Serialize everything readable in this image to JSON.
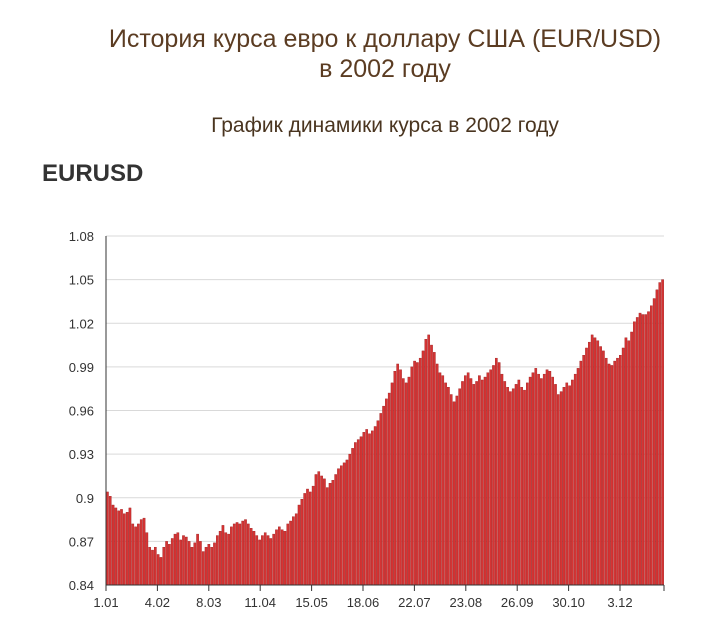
{
  "header": {
    "title_line1": "История курса евро к доллару США (EUR/USD)",
    "title_line2": "в 2002 году",
    "subtitle": "График динамики курса в 2002 году",
    "ticker": "EURUSD"
  },
  "colors": {
    "bar": "#d63434",
    "bar_edge": "#9e1f1f",
    "grid": "#d9d9d9",
    "axis": "#333333"
  },
  "chart_data": {
    "type": "bar",
    "title": "EURUSD",
    "xlabel": "",
    "ylabel": "",
    "ylim": [
      0.84,
      1.08
    ],
    "yticks": [
      "1.08",
      "1.05",
      "1.02",
      "0.99",
      "0.96",
      "0.93",
      "0.9",
      "0.87",
      "0.84"
    ],
    "xticks": [
      "1.01",
      "4.02",
      "8.03",
      "11.04",
      "15.05",
      "18.06",
      "22.07",
      "23.08",
      "26.09",
      "30.10",
      "3.12"
    ],
    "grid": true,
    "legend": "none",
    "values": [
      0.904,
      0.901,
      0.895,
      0.893,
      0.891,
      0.892,
      0.889,
      0.89,
      0.893,
      0.882,
      0.88,
      0.882,
      0.885,
      0.886,
      0.876,
      0.866,
      0.864,
      0.866,
      0.861,
      0.859,
      0.866,
      0.87,
      0.868,
      0.872,
      0.875,
      0.876,
      0.871,
      0.874,
      0.873,
      0.87,
      0.866,
      0.869,
      0.875,
      0.87,
      0.863,
      0.866,
      0.868,
      0.866,
      0.869,
      0.874,
      0.877,
      0.881,
      0.876,
      0.875,
      0.88,
      0.882,
      0.883,
      0.882,
      0.884,
      0.885,
      0.882,
      0.879,
      0.877,
      0.874,
      0.871,
      0.874,
      0.876,
      0.874,
      0.872,
      0.875,
      0.878,
      0.88,
      0.878,
      0.877,
      0.882,
      0.884,
      0.887,
      0.889,
      0.895,
      0.899,
      0.903,
      0.906,
      0.904,
      0.908,
      0.916,
      0.918,
      0.915,
      0.913,
      0.907,
      0.91,
      0.912,
      0.916,
      0.92,
      0.922,
      0.924,
      0.926,
      0.93,
      0.934,
      0.938,
      0.94,
      0.942,
      0.945,
      0.947,
      0.944,
      0.946,
      0.949,
      0.953,
      0.958,
      0.963,
      0.968,
      0.972,
      0.979,
      0.987,
      0.992,
      0.988,
      0.982,
      0.979,
      0.983,
      0.99,
      0.994,
      0.993,
      0.996,
      1.001,
      1.009,
      1.012,
      1.005,
      1.0,
      0.992,
      0.986,
      0.984,
      0.979,
      0.976,
      0.971,
      0.966,
      0.97,
      0.975,
      0.98,
      0.984,
      0.986,
      0.982,
      0.978,
      0.98,
      0.984,
      0.981,
      0.983,
      0.986,
      0.988,
      0.991,
      0.996,
      0.993,
      0.985,
      0.98,
      0.976,
      0.973,
      0.975,
      0.978,
      0.981,
      0.976,
      0.974,
      0.979,
      0.983,
      0.986,
      0.989,
      0.985,
      0.982,
      0.985,
      0.988,
      0.987,
      0.983,
      0.978,
      0.971,
      0.973,
      0.976,
      0.979,
      0.977,
      0.981,
      0.985,
      0.989,
      0.994,
      0.998,
      1.003,
      1.007,
      1.012,
      1.01,
      1.008,
      1.004,
      1.001,
      0.996,
      0.992,
      0.991,
      0.994,
      0.996,
      0.998,
      1.003,
      1.01,
      1.008,
      1.014,
      1.021,
      1.024,
      1.027,
      1.026,
      1.026,
      1.028,
      1.032,
      1.037,
      1.043,
      1.048,
      1.05
    ]
  }
}
